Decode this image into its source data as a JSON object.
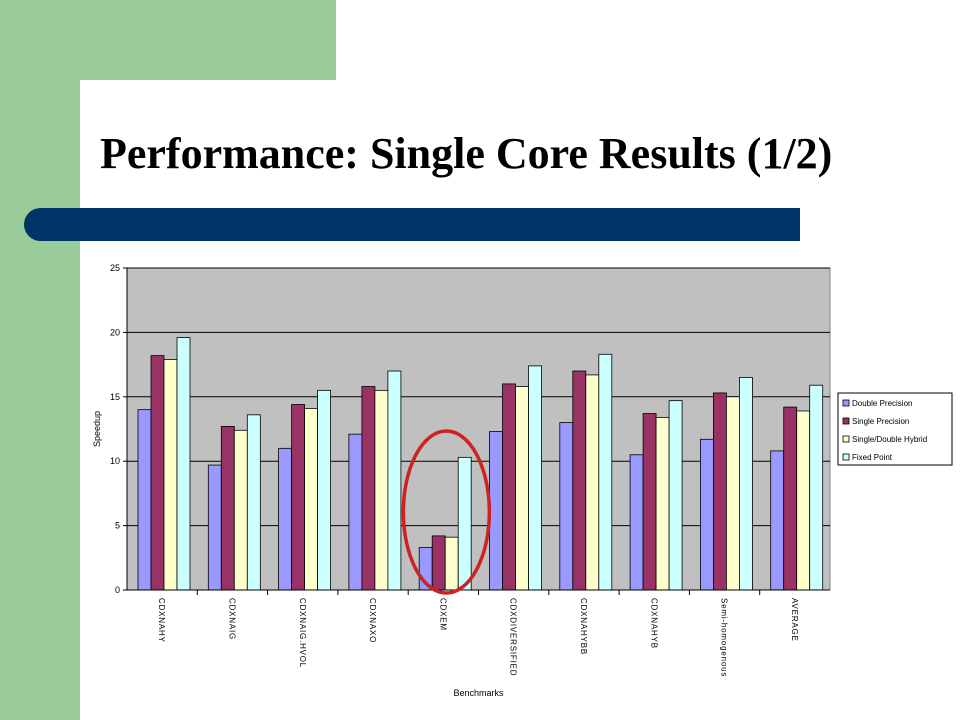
{
  "slide": {
    "title": "Performance: Single Core Results (1/2)"
  },
  "colors": {
    "sidebar_green": "#99cc99",
    "title_rule": "#003366",
    "plot_background": "#c0c0c0",
    "highlight_ellipse": "#cc2222"
  },
  "chart_data": {
    "type": "bar",
    "xlabel": "Benchmarks",
    "ylabel": "Speedup",
    "ylim": [
      0,
      25
    ],
    "yticks": [
      0,
      5,
      10,
      15,
      20,
      25
    ],
    "grid": true,
    "legend_position": "right",
    "categories": [
      "CDXNAHY",
      "CDXNAIG",
      "CDXNAIG.HVOL",
      "CDXNAXO",
      "CDXEM",
      "CDXDIVERSIFIED",
      "CDXNAHYBB",
      "CDXNAHYB",
      "Semi-homogenous",
      "AVERAGE"
    ],
    "series": [
      {
        "name": "Double Precision",
        "color": "#9999ff",
        "values": [
          14.0,
          9.7,
          11.0,
          12.1,
          3.3,
          12.3,
          13.0,
          10.5,
          11.7,
          10.8
        ]
      },
      {
        "name": "Single Precision",
        "color": "#993366",
        "values": [
          18.2,
          12.7,
          14.4,
          15.8,
          4.2,
          16.0,
          17.0,
          13.7,
          15.3,
          14.2
        ]
      },
      {
        "name": "Single/Double Hybrid",
        "color": "#ffffcc",
        "values": [
          17.9,
          12.4,
          14.1,
          15.5,
          4.1,
          15.8,
          16.7,
          13.4,
          15.0,
          13.9
        ]
      },
      {
        "name": "Fixed Point",
        "color": "#ccffff",
        "values": [
          19.6,
          13.6,
          15.5,
          17.0,
          10.3,
          17.4,
          18.3,
          14.7,
          16.5,
          15.9
        ]
      }
    ],
    "annotations": [
      {
        "type": "ellipse",
        "target_category": "CDXEM",
        "color": "#cc2222"
      }
    ]
  }
}
